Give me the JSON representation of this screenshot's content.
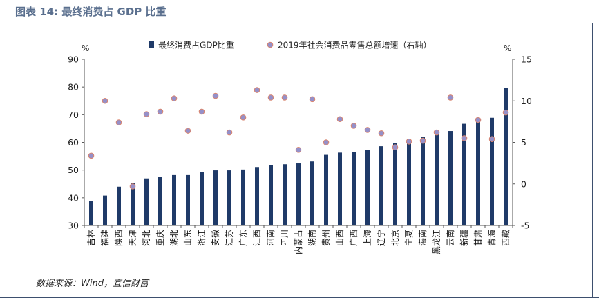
{
  "header": {
    "title": "图表 14: 最终消费占 GDP 比重"
  },
  "footer": {
    "source": "数据来源：Wind，宜信财富"
  },
  "colors": {
    "bar": "#1f3a68",
    "dot_fill": "#9590c9",
    "dot_stroke": "#d9856f",
    "title": "#5a6f8e"
  },
  "chart_data": {
    "type": "bar",
    "categories": [
      "吉林",
      "福建",
      "陕西",
      "天津",
      "河北",
      "重庆",
      "湖北",
      "山东",
      "浙江",
      "安徽",
      "江苏",
      "广东",
      "江西",
      "河南",
      "四川",
      "内蒙古",
      "湖南",
      "贵州",
      "山西",
      "广西",
      "上海",
      "辽宁",
      "北京",
      "宁夏",
      "海南",
      "黑龙江",
      "云南",
      "新疆",
      "甘肃",
      "青海",
      "西藏"
    ],
    "series": [
      {
        "name": "最终消费占GDP比重",
        "type": "bar",
        "axis": "left",
        "values": [
          38.8,
          40.8,
          44.0,
          45.3,
          47.0,
          47.6,
          48.2,
          48.2,
          49.2,
          49.9,
          49.9,
          50.2,
          51.1,
          51.9,
          52.1,
          52.4,
          53.1,
          55.5,
          56.3,
          56.6,
          57.2,
          58.6,
          59.8,
          61.3,
          62.0,
          63.1,
          64.1,
          66.7,
          68.6,
          68.9,
          79.7
        ]
      },
      {
        "name": "2019年社会消费品零售总额增速（右轴）",
        "type": "scatter",
        "axis": "right",
        "values": [
          3.4,
          10.0,
          7.4,
          -0.3,
          8.4,
          8.7,
          10.3,
          6.4,
          8.7,
          10.6,
          6.2,
          8.0,
          11.3,
          10.4,
          10.4,
          4.1,
          10.2,
          5.0,
          7.8,
          7.0,
          6.5,
          6.1,
          4.4,
          5.1,
          5.2,
          6.2,
          10.4,
          5.5,
          7.7,
          5.4,
          8.6
        ]
      }
    ],
    "left_axis": {
      "unit": "%",
      "ylim": [
        30,
        90
      ],
      "ticks": [
        30,
        40,
        50,
        60,
        70,
        80,
        90
      ]
    },
    "right_axis": {
      "unit": "%",
      "ylim": [
        -5,
        15
      ],
      "ticks": [
        -5,
        0,
        5,
        10,
        15
      ]
    },
    "legend_position": "top"
  }
}
